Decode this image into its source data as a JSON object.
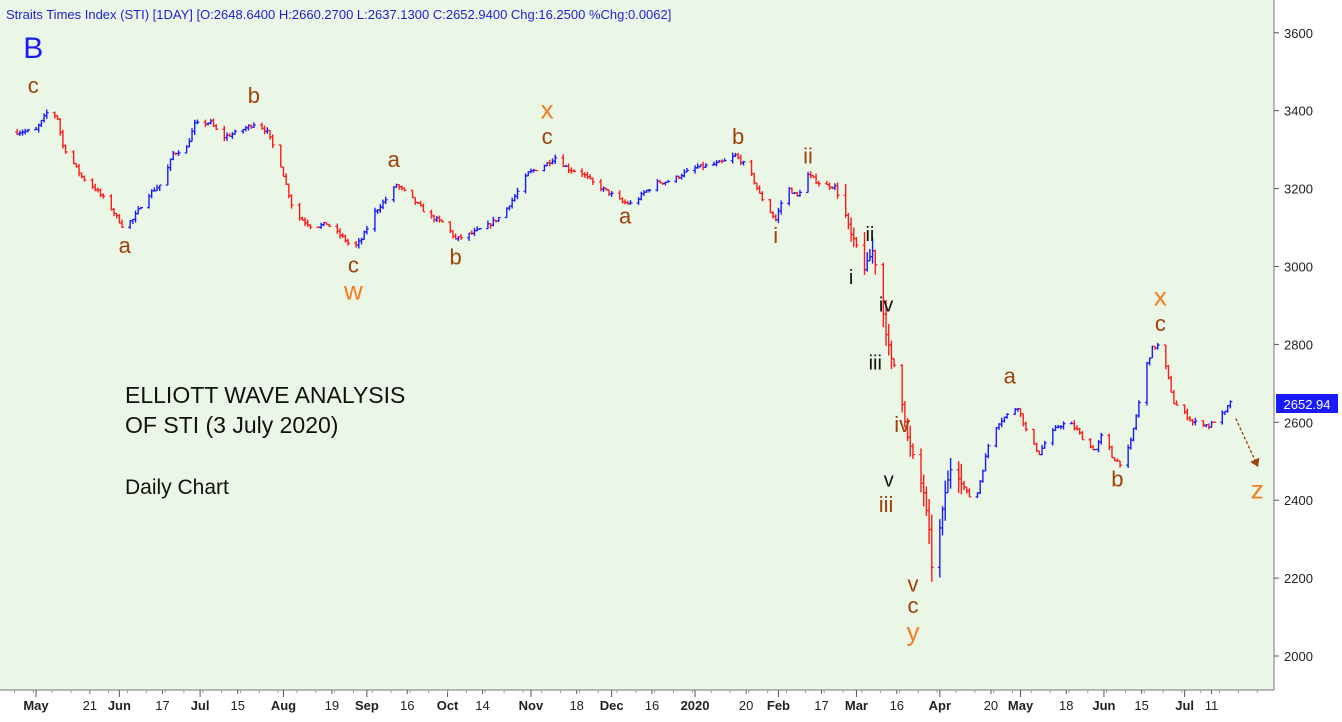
{
  "header": "Straits Times Index (STI) [1DAY] [O:2648.6400 H:2660.2700 L:2637.1300 C:2652.9400 Chg:16.2500 %Chg:0.0062]",
  "price_label": "2652.94",
  "notes": {
    "title_line1": "ELLIOTT WAVE ANALYSIS",
    "title_line2": "OF STI (3 July 2020)",
    "subtitle": "Daily Chart"
  },
  "colors": {
    "background": "#eaf7e6",
    "up_bar": "#1a1aff",
    "down_bar": "#ff1a1a",
    "wave_brown": "#a0400a",
    "wave_orange": "#f57d1f",
    "wave_blue": "#1a1aff",
    "wave_black": "#111111",
    "price_label_bg": "#1a1aff"
  },
  "chart_data": {
    "type": "ohlc",
    "ylim": [
      1960,
      3660
    ],
    "yticks": [
      2000,
      2200,
      2400,
      2600,
      2800,
      3000,
      3200,
      3400,
      3600
    ],
    "xticks": [
      {
        "label": "May",
        "major": true,
        "day": 0
      },
      {
        "label": "21",
        "major": false,
        "day": 20
      },
      {
        "label": "Jun",
        "major": true,
        "day": 31
      },
      {
        "label": "17",
        "major": false,
        "day": 47
      },
      {
        "label": "Jul",
        "major": true,
        "day": 61
      },
      {
        "label": "15",
        "major": false,
        "day": 75
      },
      {
        "label": "Aug",
        "major": true,
        "day": 92
      },
      {
        "label": "19",
        "major": false,
        "day": 110
      },
      {
        "label": "Sep",
        "major": true,
        "day": 123
      },
      {
        "label": "16",
        "major": false,
        "day": 138
      },
      {
        "label": "Oct",
        "major": true,
        "day": 153
      },
      {
        "label": "14",
        "major": false,
        "day": 166
      },
      {
        "label": "Nov",
        "major": true,
        "day": 184
      },
      {
        "label": "18",
        "major": false,
        "day": 201
      },
      {
        "label": "Dec",
        "major": true,
        "day": 214
      },
      {
        "label": "16",
        "major": false,
        "day": 229
      },
      {
        "label": "2020",
        "major": true,
        "day": 245
      },
      {
        "label": "20",
        "major": false,
        "day": 264
      },
      {
        "label": "Feb",
        "major": true,
        "day": 276
      },
      {
        "label": "17",
        "major": false,
        "day": 292
      },
      {
        "label": "Mar",
        "major": true,
        "day": 305
      },
      {
        "label": "16",
        "major": false,
        "day": 320
      },
      {
        "label": "Apr",
        "major": true,
        "day": 336
      },
      {
        "label": "20",
        "major": false,
        "day": 355
      },
      {
        "label": "May",
        "major": true,
        "day": 366
      },
      {
        "label": "18",
        "major": false,
        "day": 383
      },
      {
        "label": "Jun",
        "major": true,
        "day": 397
      },
      {
        "label": "15",
        "major": false,
        "day": 411
      },
      {
        "label": "Jul",
        "major": true,
        "day": 427
      },
      {
        "label": "11",
        "major": false,
        "day": 437
      }
    ],
    "price_path": [
      [
        -7,
        3345
      ],
      [
        0,
        3350
      ],
      [
        5,
        3405
      ],
      [
        8,
        3380
      ],
      [
        10,
        3310
      ],
      [
        17,
        3230
      ],
      [
        22,
        3200
      ],
      [
        27,
        3160
      ],
      [
        32,
        3105
      ],
      [
        36,
        3120
      ],
      [
        41,
        3180
      ],
      [
        47,
        3215
      ],
      [
        51,
        3290
      ],
      [
        56,
        3305
      ],
      [
        59,
        3365
      ],
      [
        65,
        3370
      ],
      [
        69,
        3330
      ],
      [
        75,
        3345
      ],
      [
        82,
        3370
      ],
      [
        86,
        3345
      ],
      [
        91,
        3260
      ],
      [
        95,
        3160
      ],
      [
        97,
        3130
      ],
      [
        103,
        3100
      ],
      [
        108,
        3110
      ],
      [
        114,
        3075
      ],
      [
        118,
        3045
      ],
      [
        121,
        3070
      ],
      [
        126,
        3140
      ],
      [
        131,
        3180
      ],
      [
        134,
        3210
      ],
      [
        139,
        3180
      ],
      [
        146,
        3130
      ],
      [
        152,
        3110
      ],
      [
        156,
        3070
      ],
      [
        162,
        3085
      ],
      [
        168,
        3105
      ],
      [
        173,
        3130
      ],
      [
        178,
        3180
      ],
      [
        183,
        3240
      ],
      [
        189,
        3260
      ],
      [
        193,
        3280
      ],
      [
        198,
        3250
      ],
      [
        203,
        3240
      ],
      [
        207,
        3215
      ],
      [
        214,
        3185
      ],
      [
        218,
        3165
      ],
      [
        222,
        3160
      ],
      [
        226,
        3190
      ],
      [
        231,
        3215
      ],
      [
        236,
        3220
      ],
      [
        241,
        3240
      ],
      [
        246,
        3255
      ],
      [
        251,
        3260
      ],
      [
        256,
        3270
      ],
      [
        260,
        3285
      ],
      [
        265,
        3250
      ],
      [
        269,
        3185
      ],
      [
        272,
        3150
      ],
      [
        275,
        3120
      ],
      [
        279,
        3205
      ],
      [
        283,
        3180
      ],
      [
        287,
        3235
      ],
      [
        292,
        3210
      ],
      [
        297,
        3205
      ],
      [
        301,
        3130
      ],
      [
        303,
        3080
      ],
      [
        306,
        3040
      ],
      [
        308,
        2995
      ],
      [
        311,
        3040
      ],
      [
        313,
        2975
      ],
      [
        316,
        2830
      ],
      [
        318,
        2760
      ],
      [
        321,
        2720
      ],
      [
        322,
        2650
      ],
      [
        324,
        2560
      ],
      [
        327,
        2490
      ],
      [
        330,
        2420
      ],
      [
        332,
        2320
      ],
      [
        333,
        2230
      ],
      [
        335,
        2280
      ],
      [
        338,
        2420
      ],
      [
        341,
        2510
      ],
      [
        343,
        2460
      ],
      [
        346,
        2420
      ],
      [
        349,
        2390
      ],
      [
        352,
        2480
      ],
      [
        355,
        2570
      ],
      [
        358,
        2600
      ],
      [
        362,
        2625
      ],
      [
        365,
        2640
      ],
      [
        369,
        2560
      ],
      [
        373,
        2520
      ],
      [
        376,
        2560
      ],
      [
        380,
        2590
      ],
      [
        384,
        2600
      ],
      [
        387,
        2580
      ],
      [
        391,
        2540
      ],
      [
        394,
        2530
      ],
      [
        397,
        2580
      ],
      [
        400,
        2510
      ],
      [
        404,
        2490
      ],
      [
        407,
        2550
      ],
      [
        410,
        2650
      ],
      [
        412,
        2730
      ],
      [
        415,
        2790
      ],
      [
        418,
        2800
      ],
      [
        421,
        2710
      ],
      [
        423,
        2650
      ],
      [
        426,
        2630
      ],
      [
        430,
        2600
      ],
      [
        433,
        2600
      ],
      [
        436,
        2590
      ],
      [
        439,
        2610
      ],
      [
        442,
        2625
      ],
      [
        444,
        2653
      ]
    ],
    "wave_labels": [
      {
        "text": "B",
        "day": -1,
        "price": 3535,
        "color": "wave_blue",
        "size": 30
      },
      {
        "text": "c",
        "day": -1,
        "price": 3445,
        "color": "wave_brown",
        "size": 22
      },
      {
        "text": "a",
        "day": 33,
        "price": 3035,
        "color": "wave_brown",
        "size": 22
      },
      {
        "text": "b",
        "day": 81,
        "price": 3420,
        "color": "wave_brown",
        "size": 22
      },
      {
        "text": "c",
        "day": 118,
        "price": 2985,
        "color": "wave_brown",
        "size": 22
      },
      {
        "text": "w",
        "day": 118,
        "price": 2915,
        "color": "wave_orange",
        "size": 26
      },
      {
        "text": "a",
        "day": 133,
        "price": 3255,
        "color": "wave_brown",
        "size": 22
      },
      {
        "text": "b",
        "day": 156,
        "price": 3005,
        "color": "wave_brown",
        "size": 22
      },
      {
        "text": "x",
        "day": 190,
        "price": 3380,
        "color": "wave_orange",
        "size": 26
      },
      {
        "text": "c",
        "day": 190,
        "price": 3315,
        "color": "wave_brown",
        "size": 22
      },
      {
        "text": "a",
        "day": 219,
        "price": 3110,
        "color": "wave_brown",
        "size": 22
      },
      {
        "text": "b",
        "day": 261,
        "price": 3315,
        "color": "wave_brown",
        "size": 22
      },
      {
        "text": "i",
        "day": 275,
        "price": 3060,
        "color": "wave_brown",
        "size": 22
      },
      {
        "text": "ii",
        "day": 287,
        "price": 3265,
        "color": "wave_brown",
        "size": 22
      },
      {
        "text": "ii",
        "day": 310,
        "price": 3065,
        "color": "wave_black",
        "size": 20
      },
      {
        "text": "i",
        "day": 303,
        "price": 2955,
        "color": "wave_black",
        "size": 20
      },
      {
        "text": "iv",
        "day": 316,
        "price": 2885,
        "color": "wave_black",
        "size": 20
      },
      {
        "text": "iii",
        "day": 312,
        "price": 2735,
        "color": "wave_black",
        "size": 20
      },
      {
        "text": "iv",
        "day": 322,
        "price": 2575,
        "color": "wave_brown",
        "size": 22
      },
      {
        "text": "v",
        "day": 317,
        "price": 2435,
        "color": "wave_black",
        "size": 20
      },
      {
        "text": "iii",
        "day": 316,
        "price": 2370,
        "color": "wave_brown",
        "size": 22
      },
      {
        "text": "v",
        "day": 326,
        "price": 2165,
        "color": "wave_brown",
        "size": 22
      },
      {
        "text": "c",
        "day": 326,
        "price": 2110,
        "color": "wave_brown",
        "size": 22
      },
      {
        "text": "y",
        "day": 326,
        "price": 2040,
        "color": "wave_orange",
        "size": 26
      },
      {
        "text": "a",
        "day": 362,
        "price": 2700,
        "color": "wave_brown",
        "size": 22
      },
      {
        "text": "b",
        "day": 402,
        "price": 2435,
        "color": "wave_brown",
        "size": 22
      },
      {
        "text": "x",
        "day": 418,
        "price": 2900,
        "color": "wave_orange",
        "size": 26
      },
      {
        "text": "c",
        "day": 418,
        "price": 2835,
        "color": "wave_brown",
        "size": 22
      },
      {
        "text": "z",
        "day": 454,
        "price": 2405,
        "color": "wave_orange",
        "size": 26
      }
    ],
    "projection_arrow": {
      "from": [
        446,
        2610
      ],
      "to": [
        454,
        2490
      ],
      "color": "wave_brown"
    }
  }
}
